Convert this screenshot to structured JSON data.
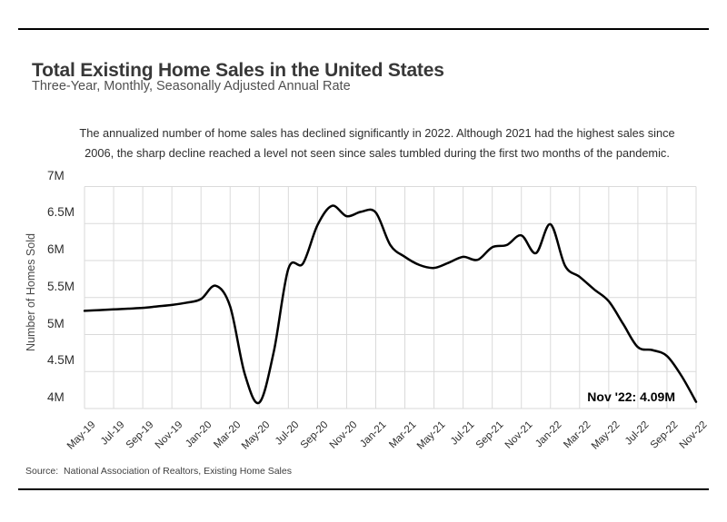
{
  "header": {
    "title": "Total Existing Home Sales in the United States",
    "subtitle": "Three-Year, Monthly, Seasonally Adjusted Annual Rate"
  },
  "annotation": "The annualized number of home sales has declined significantly in 2022. Although 2021 had the highest sales since\n2006, the sharp decline reached a level not seen since sales tumbled during the first two months of the pandemic.",
  "chart_data": {
    "type": "line",
    "title": "Total Existing Home Sales in the United States",
    "subtitle": "Three-Year, Monthly, Seasonally Adjusted Annual Rate",
    "x": [
      "May-19",
      "Jun-19",
      "Jul-19",
      "Aug-19",
      "Sep-19",
      "Oct-19",
      "Nov-19",
      "Dec-19",
      "Jan-20",
      "Feb-20",
      "Mar-20",
      "Apr-20",
      "May-20",
      "Jun-20",
      "Jul-20",
      "Aug-20",
      "Sep-20",
      "Oct-20",
      "Nov-20",
      "Dec-20",
      "Jan-21",
      "Feb-21",
      "Mar-21",
      "Apr-21",
      "May-21",
      "Jun-21",
      "Jul-21",
      "Aug-21",
      "Sep-21",
      "Oct-21",
      "Nov-21",
      "Dec-21",
      "Jan-22",
      "Feb-22",
      "Mar-22",
      "Apr-22",
      "May-22",
      "Jun-22",
      "Jul-22",
      "Aug-22",
      "Sep-22",
      "Oct-22",
      "Nov-22"
    ],
    "values": [
      5.32,
      5.33,
      5.34,
      5.35,
      5.36,
      5.38,
      5.4,
      5.43,
      5.48,
      5.66,
      5.38,
      4.47,
      4.08,
      4.77,
      5.89,
      5.96,
      6.48,
      6.74,
      6.6,
      6.66,
      6.65,
      6.21,
      6.05,
      5.94,
      5.9,
      5.97,
      6.05,
      6.01,
      6.18,
      6.21,
      6.34,
      6.1,
      6.49,
      5.93,
      5.78,
      5.61,
      5.45,
      5.14,
      4.83,
      4.79,
      4.71,
      4.44,
      4.09
    ],
    "values_unit": "millions of homes, SAAR",
    "ylabel": "Number of Homes Sold",
    "ylim": [
      4,
      7
    ],
    "ytick_values": [
      7,
      6.5,
      6,
      5.5,
      5,
      4.5,
      4
    ],
    "ytick_labels": [
      "7M",
      "6.5M",
      "6M",
      "5.5M",
      "5M",
      "4.5M",
      "4M"
    ],
    "xtick_every": 2,
    "grid": true,
    "legend": "none",
    "line_color": "#000000",
    "grid_color": "#dadada",
    "end_label": "Nov '22: 4.09M",
    "end_point": {
      "x": "Nov-22",
      "value": 4.09
    }
  },
  "source": "Source:  National Association of Realtors, Existing Home Sales"
}
